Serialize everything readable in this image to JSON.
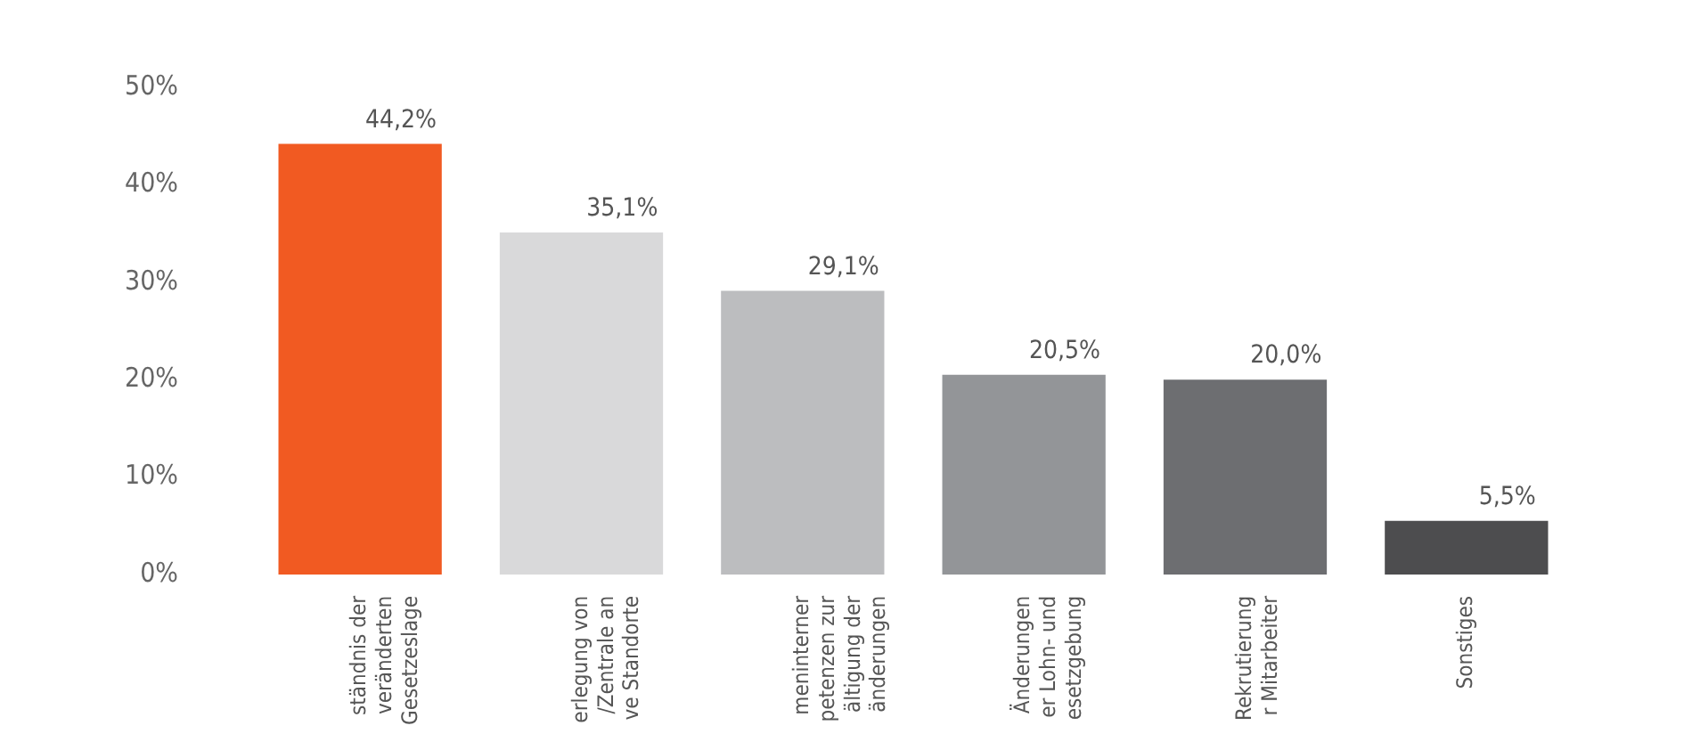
{
  "chart_data": {
    "type": "bar",
    "categories": [
      "ständnis der\nveränderten\nGesetzeslage",
      "erlegung von\n/Zentrale an\nve Standorte",
      "meninterner\npetenzen zur\nältigung der\nänderungen",
      "Änderungen\ner Lohn- und\nesetzgebung",
      "Rekrutierung\nr Mitarbeiter",
      "Sonstiges"
    ],
    "values": [
      44.2,
      35.1,
      29.1,
      20.5,
      20.0,
      5.5
    ],
    "value_labels": [
      "44,2%",
      "35,1%",
      "29,1%",
      "20,5%",
      "20,0%",
      "5,5%"
    ],
    "colors": [
      "#f15a22",
      "#d9d9da",
      "#bcbdbf",
      "#939598",
      "#6d6e71",
      "#4d4d4f"
    ],
    "ylim": [
      0,
      50
    ],
    "yticks": [
      {
        "value": 0,
        "label": "0%"
      },
      {
        "value": 10,
        "label": "10%"
      },
      {
        "value": 20,
        "label": "20%"
      },
      {
        "value": 30,
        "label": "30%"
      },
      {
        "value": 40,
        "label": "40%"
      },
      {
        "value": 50,
        "label": "50%"
      }
    ],
    "grid": false,
    "legend": false
  }
}
